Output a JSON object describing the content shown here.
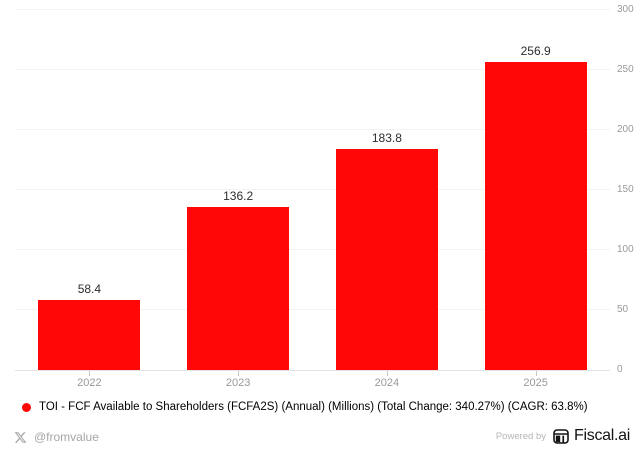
{
  "chart_data": {
    "type": "bar",
    "title": "",
    "categories": [
      "2022",
      "2023",
      "2024",
      "2025"
    ],
    "values": [
      58.4,
      136.2,
      183.8,
      256.9
    ],
    "value_labels": [
      "58.4",
      "136.2",
      "183.8",
      "256.9"
    ],
    "series_name": "TOI - FCF Available to Shareholders (FCFA2S) (Annual) (Millions)",
    "xlabel": "",
    "ylabel": "",
    "ylim": [
      0,
      300
    ],
    "yticks": [
      0,
      50,
      100,
      150,
      200,
      250,
      300
    ],
    "y_axis_side": "right",
    "grid": true,
    "legend_position": "bottom-left",
    "bar_color": "#ff0707"
  },
  "legend": {
    "label": "TOI - FCF Available to Shareholders (FCFA2S) (Annual) (Millions) (Total Change: 340.27%) (CAGR: 63.8%)"
  },
  "footer": {
    "handle": "@fromvalue",
    "powered_by": "Powered by",
    "brand": "Fiscal.ai"
  },
  "colors": {
    "bar": "#ff0707",
    "axis_label": "#999999",
    "value_label": "#2d2d2d",
    "grid_line": "#f3f3f3",
    "axis_line": "#e3e3e3",
    "tick": "#c9c9c9",
    "muted": "#a6a6a6",
    "brand_dark": "#141414"
  }
}
